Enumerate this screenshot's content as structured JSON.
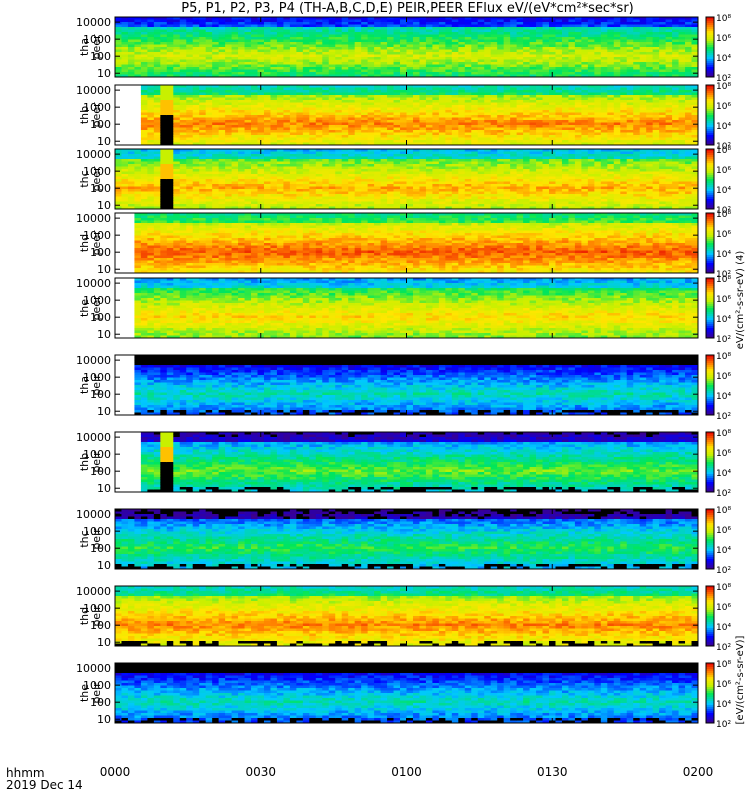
{
  "chart_data": {
    "type": "heatmap",
    "title": "P5, P1, P2, P3, P4 (TH-A,B,C,D,E) PEIR,PEER EFlux eV/(eV*cm²*sec*sr)",
    "x_axis": {
      "tick_labels": [
        "0000",
        "0030",
        "0100",
        "0130",
        "0200"
      ],
      "tick_minutes": [
        0,
        30,
        60,
        90,
        120
      ],
      "range_minutes": [
        0,
        120
      ],
      "label_lines": [
        "hhmm",
        "2019 Dec 14"
      ]
    },
    "y_axis": {
      "scale": "log",
      "unit": "eV",
      "tick_labels": [
        "10",
        "100",
        "1000",
        "10000"
      ],
      "tick_values": [
        10,
        100,
        1000,
        10000
      ],
      "range": [
        6,
        20000
      ]
    },
    "colorbar": {
      "scale": "log",
      "tick_labels": [
        "10²",
        "10³",
        "10⁴",
        "10⁵",
        "10⁶",
        "10⁷",
        "10⁸"
      ],
      "top_title": "eV/(cm²-s-sr-eV) (4)",
      "bottom_title": "[eV/(cm²-s-sr-eV)]"
    },
    "panels": [
      {
        "probe": "tha",
        "sensor": "peer",
        "label": "tha\npeer",
        "data_start_min": 0,
        "gap": [],
        "bg_band": 0.55,
        "bg_hot": 0.35
      },
      {
        "probe": "thb",
        "sensor": "peer",
        "label": "thb\npeer",
        "data_start_min": 6,
        "gap": [
          10,
          11.5
        ],
        "bg_band": 0.75,
        "bg_hot": 0.55
      },
      {
        "probe": "thc",
        "sensor": "peer",
        "label": "thc\npeer",
        "data_start_min": 0,
        "gap": [
          10,
          11.5
        ],
        "bg_band": 0.7,
        "bg_hot": 0.5
      },
      {
        "probe": "thd",
        "sensor": "peer",
        "label": "thd\npeer",
        "data_start_min": 4,
        "gap": [],
        "bg_band": 0.8,
        "bg_hot": 0.6
      },
      {
        "probe": "the",
        "sensor": "peer",
        "label": "the\npeer",
        "data_start_min": 4,
        "gap": [],
        "bg_band": 0.65,
        "bg_hot": 0.55
      },
      {
        "probe": "tha",
        "sensor": "peir",
        "label": "tha\npeir",
        "data_start_min": 4,
        "gap": [],
        "bg_band": 0.3,
        "bg_hot": 0.15
      },
      {
        "probe": "thb",
        "sensor": "peir",
        "label": "thb\npeir",
        "data_start_min": 6,
        "gap": [
          10,
          11.5
        ],
        "bg_band": 0.45,
        "bg_hot": 0.3
      },
      {
        "probe": "thc",
        "sensor": "peir",
        "label": "thc\npeir",
        "data_start_min": 0,
        "gap": [],
        "bg_band": 0.4,
        "bg_hot": 0.3
      },
      {
        "probe": "thd",
        "sensor": "peir",
        "label": "thd\npeir",
        "data_start_min": 0,
        "gap": [],
        "bg_band": 0.75,
        "bg_hot": 0.55
      },
      {
        "probe": "the",
        "sensor": "peir",
        "label": "the\npeir",
        "data_start_min": 0,
        "gap": [],
        "bg_band": 0.3,
        "bg_hot": 0.2
      }
    ],
    "grid": false
  }
}
